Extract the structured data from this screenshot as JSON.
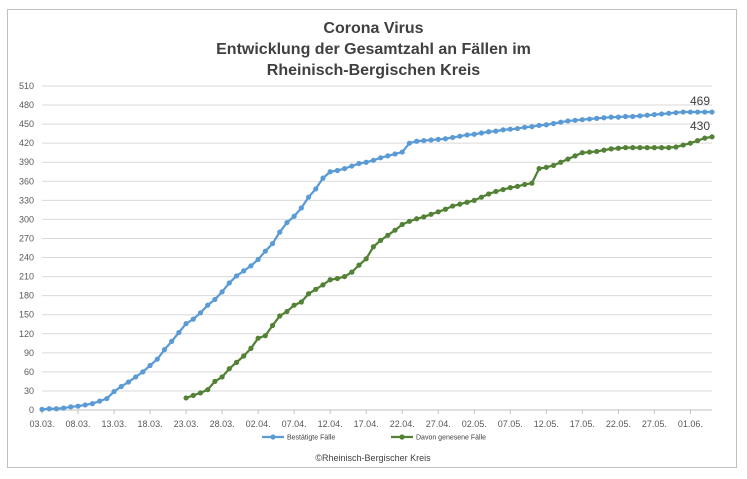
{
  "chart_data": {
    "type": "line",
    "title_lines": [
      "Corona Virus",
      "Entwicklung der Gesamtzahl an Fällen im",
      "Rheinisch-Bergischen Kreis"
    ],
    "xlabel": "",
    "ylabel": "",
    "ylim": [
      0,
      510
    ],
    "yticks": [
      0,
      30,
      60,
      90,
      120,
      150,
      180,
      210,
      240,
      270,
      300,
      330,
      360,
      390,
      420,
      450,
      480,
      510
    ],
    "grid": "horizontal",
    "legend_placement": "bottom",
    "x_start_index": 0,
    "x_end_index": 93,
    "xtick_labels": [
      {
        "index": 0,
        "label": "03.03."
      },
      {
        "index": 5,
        "label": "08.03."
      },
      {
        "index": 10,
        "label": "13.03."
      },
      {
        "index": 15,
        "label": "18.03."
      },
      {
        "index": 20,
        "label": "23.03."
      },
      {
        "index": 25,
        "label": "28.03."
      },
      {
        "index": 30,
        "label": "02.04."
      },
      {
        "index": 35,
        "label": "07.04."
      },
      {
        "index": 40,
        "label": "12.04."
      },
      {
        "index": 45,
        "label": "17.04."
      },
      {
        "index": 50,
        "label": "22.04."
      },
      {
        "index": 55,
        "label": "27.04."
      },
      {
        "index": 60,
        "label": "02.05."
      },
      {
        "index": 65,
        "label": "07.05."
      },
      {
        "index": 70,
        "label": "12.05."
      },
      {
        "index": 75,
        "label": "17.05."
      },
      {
        "index": 80,
        "label": "22.05."
      },
      {
        "index": 85,
        "label": "27.05."
      },
      {
        "index": 90,
        "label": "01.06."
      }
    ],
    "series": [
      {
        "name": "Bestätigte Fälle",
        "color": "#5b9bd5",
        "start_index": 0,
        "end_label": "469",
        "values": [
          1,
          2,
          2,
          3,
          5,
          6,
          8,
          10,
          14,
          18,
          29,
          37,
          44,
          52,
          60,
          70,
          80,
          95,
          108,
          122,
          136,
          143,
          153,
          165,
          174,
          186,
          200,
          211,
          219,
          227,
          237,
          250,
          262,
          280,
          295,
          305,
          318,
          335,
          348,
          365,
          375,
          377,
          380,
          384,
          388,
          390,
          393,
          397,
          400,
          403,
          406,
          420,
          423,
          424,
          425,
          426,
          427,
          429,
          431,
          433,
          434,
          436,
          438,
          439,
          441,
          442,
          443,
          445,
          446,
          448,
          449,
          451,
          453,
          455,
          456,
          457,
          458,
          459,
          460,
          461,
          461,
          462,
          462,
          463,
          464,
          465,
          466,
          467,
          468,
          469,
          469,
          469,
          469,
          469
        ]
      },
      {
        "name": "Davon genesene Fälle",
        "color": "#538135",
        "start_index": 20,
        "end_label": "430",
        "values": [
          19,
          23,
          27,
          32,
          45,
          52,
          65,
          75,
          85,
          97,
          113,
          117,
          133,
          148,
          155,
          165,
          170,
          183,
          190,
          197,
          205,
          207,
          210,
          217,
          228,
          238,
          257,
          267,
          275,
          283,
          292,
          297,
          301,
          304,
          308,
          312,
          316,
          321,
          324,
          327,
          330,
          335,
          340,
          344,
          347,
          350,
          352,
          355,
          357,
          380,
          382,
          385,
          390,
          395,
          400,
          405,
          406,
          407,
          409,
          411,
          412,
          413,
          413,
          413,
          413,
          413,
          413,
          413,
          414,
          417,
          420,
          424,
          428,
          430
        ]
      }
    ],
    "credit": "©Rheinisch-Bergischer Kreis"
  }
}
